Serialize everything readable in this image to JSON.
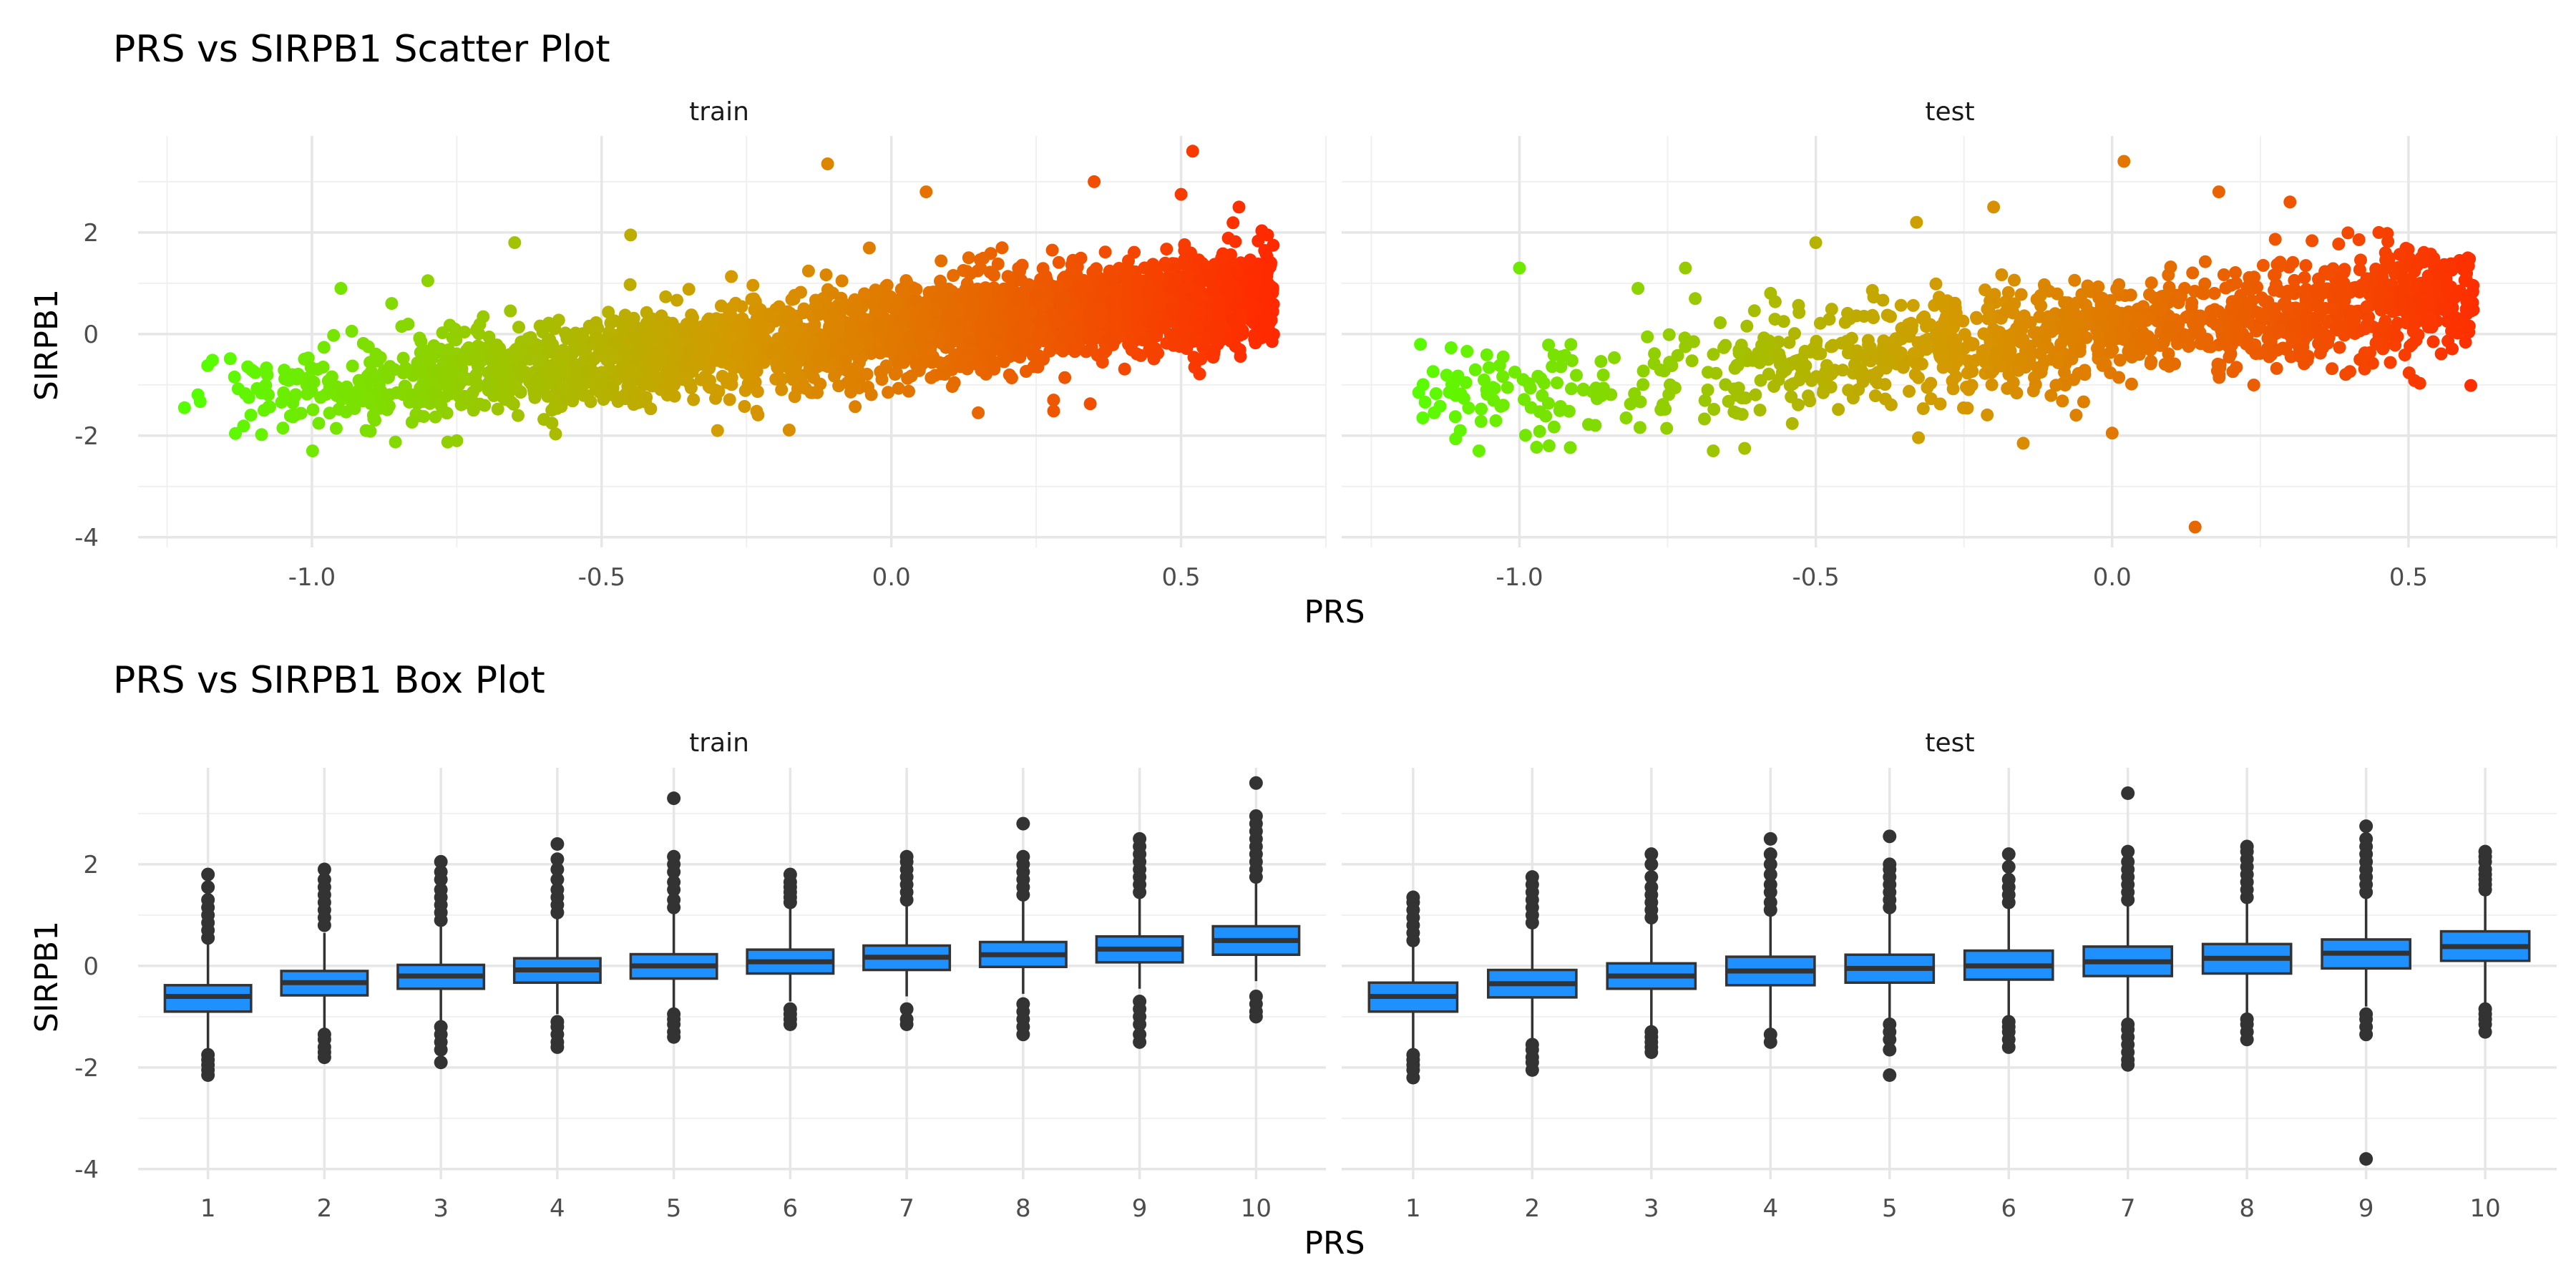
{
  "chart_data": [
    {
      "type": "scatter",
      "title": "PRS vs SIRPB1 Scatter Plot",
      "xlabel": "PRS",
      "ylabel": "SIRPB1",
      "facets": [
        "train",
        "test"
      ],
      "xlim": [
        -1.3,
        0.75
      ],
      "ylim": [
        -4.2,
        3.9
      ],
      "x_ticks": [
        -1.0,
        -0.5,
        0.0,
        0.5
      ],
      "x_tick_labels": [
        "-1.0",
        "-0.5",
        "0.0",
        "0.5"
      ],
      "y_ticks": [
        -4,
        -2,
        0,
        2
      ],
      "y_tick_labels": [
        "-4",
        "-2",
        "0",
        "2"
      ],
      "grid": true,
      "color_gradient": {
        "low": "#55ff00",
        "mid": "#d49a00",
        "high": "#ff2a00"
      },
      "trend": {
        "slope": 1.15,
        "intercept": 0.05
      },
      "series": [
        {
          "facet": "train",
          "x_range": [
            -1.22,
            0.66
          ],
          "point_count": 3000,
          "points": [
            [
              -1.22,
              -1.45
            ],
            [
              -1.18,
              -0.62
            ],
            [
              -1.05,
              -1.85
            ],
            [
              -0.95,
              0.9
            ],
            [
              -0.8,
              1.05
            ],
            [
              -0.75,
              -2.1
            ],
            [
              -0.65,
              1.8
            ],
            [
              -0.45,
              1.95
            ],
            [
              -0.3,
              -1.9
            ],
            [
              -0.11,
              3.35
            ],
            [
              0.06,
              2.8
            ],
            [
              0.15,
              -1.55
            ],
            [
              0.28,
              -1.3
            ],
            [
              0.35,
              3.0
            ],
            [
              0.5,
              2.75
            ],
            [
              0.52,
              3.6
            ],
            [
              0.6,
              2.5
            ],
            [
              0.65,
              1.0
            ],
            [
              0.62,
              0.6
            ],
            [
              0.57,
              1.5
            ]
          ]
        },
        {
          "facet": "test",
          "x_range": [
            -1.17,
            0.61
          ],
          "point_count": 1300,
          "points": [
            [
              -1.17,
              -1.15
            ],
            [
              -1.1,
              -1.9
            ],
            [
              -1.0,
              1.3
            ],
            [
              -0.95,
              -2.2
            ],
            [
              -0.8,
              0.9
            ],
            [
              -0.72,
              1.3
            ],
            [
              -0.62,
              -2.25
            ],
            [
              -0.5,
              1.8
            ],
            [
              -0.33,
              2.2
            ],
            [
              -0.2,
              2.5
            ],
            [
              -0.15,
              -2.15
            ],
            [
              0.0,
              -1.95
            ],
            [
              0.02,
              3.4
            ],
            [
              0.14,
              -3.8
            ],
            [
              0.18,
              2.8
            ],
            [
              0.3,
              2.6
            ],
            [
              0.45,
              2.0
            ],
            [
              0.55,
              1.2
            ],
            [
              0.6,
              1.5
            ],
            [
              0.58,
              0.8
            ]
          ]
        }
      ]
    },
    {
      "type": "box",
      "title": "PRS vs SIRPB1 Box Plot",
      "xlabel": "PRS",
      "ylabel": "SIRPB1",
      "facets": [
        "train",
        "test"
      ],
      "categories": [
        "1",
        "2",
        "3",
        "4",
        "5",
        "6",
        "7",
        "8",
        "9",
        "10"
      ],
      "ylim": [
        -4.2,
        3.9
      ],
      "y_ticks": [
        -4,
        -2,
        0,
        2
      ],
      "y_tick_labels": [
        "-4",
        "-2",
        "0",
        "2"
      ],
      "grid": true,
      "fill": "#1e90ff",
      "series": [
        {
          "facet": "train",
          "boxes": [
            {
              "whisker_low": -1.7,
              "q1": -0.9,
              "median": -0.6,
              "q3": -0.38,
              "whisker_high": 0.45,
              "outliers": [
                -1.75,
                -1.85,
                -1.95,
                -2.05,
                -2.15,
                0.55,
                0.7,
                0.85,
                1.0,
                1.15,
                1.3,
                1.55,
                1.8
              ]
            },
            {
              "whisker_low": -1.25,
              "q1": -0.58,
              "median": -0.33,
              "q3": -0.1,
              "whisker_high": 0.65,
              "outliers": [
                -1.35,
                -1.45,
                -1.6,
                -1.7,
                -1.8,
                0.8,
                0.95,
                1.1,
                1.25,
                1.4,
                1.55,
                1.7,
                1.9
              ]
            },
            {
              "whisker_low": -1.1,
              "q1": -0.45,
              "median": -0.2,
              "q3": 0.02,
              "whisker_high": 0.8,
              "outliers": [
                -1.2,
                -1.35,
                -1.5,
                -1.65,
                -1.9,
                0.9,
                1.05,
                1.2,
                1.35,
                1.5,
                1.7,
                1.85,
                2.05
              ]
            },
            {
              "whisker_low": -0.95,
              "q1": -0.33,
              "median": -0.08,
              "q3": 0.15,
              "whisker_high": 0.95,
              "outliers": [
                -1.1,
                -1.2,
                -1.35,
                -1.5,
                -1.6,
                1.05,
                1.2,
                1.35,
                1.5,
                1.7,
                1.9,
                2.1,
                2.4
              ]
            },
            {
              "whisker_low": -0.85,
              "q1": -0.25,
              "median": 0.0,
              "q3": 0.23,
              "whisker_high": 1.05,
              "outliers": [
                -0.95,
                -1.05,
                -1.15,
                -1.3,
                -1.4,
                1.15,
                1.3,
                1.5,
                1.65,
                1.85,
                2.0,
                2.15,
                3.3
              ]
            },
            {
              "whisker_low": -0.7,
              "q1": -0.15,
              "median": 0.08,
              "q3": 0.32,
              "whisker_high": 1.15,
              "outliers": [
                -0.85,
                -0.95,
                -1.05,
                -1.15,
                1.25,
                1.35,
                1.45,
                1.55,
                1.65,
                1.8
              ]
            },
            {
              "whisker_low": -0.6,
              "q1": -0.08,
              "median": 0.17,
              "q3": 0.4,
              "whisker_high": 1.2,
              "outliers": [
                -0.85,
                -1.05,
                -1.15,
                1.3,
                1.45,
                1.6,
                1.75,
                1.9,
                2.05,
                2.15
              ]
            },
            {
              "whisker_low": -0.55,
              "q1": -0.02,
              "median": 0.22,
              "q3": 0.47,
              "whisker_high": 1.3,
              "outliers": [
                -0.75,
                -0.9,
                -1.05,
                -1.2,
                -1.35,
                1.4,
                1.55,
                1.7,
                1.85,
                2.0,
                2.15,
                2.8
              ]
            },
            {
              "whisker_low": -0.45,
              "q1": 0.07,
              "median": 0.33,
              "q3": 0.58,
              "whisker_high": 1.35,
              "outliers": [
                -0.7,
                -0.85,
                -1.0,
                -1.15,
                -1.35,
                -1.5,
                1.45,
                1.6,
                1.75,
                1.9,
                2.05,
                2.2,
                2.35,
                2.5
              ]
            },
            {
              "whisker_low": -0.3,
              "q1": 0.22,
              "median": 0.5,
              "q3": 0.78,
              "whisker_high": 1.65,
              "outliers": [
                -0.6,
                -0.75,
                -0.9,
                -1.0,
                1.75,
                1.9,
                2.05,
                2.2,
                2.35,
                2.5,
                2.65,
                2.8,
                2.95,
                3.6
              ]
            }
          ]
        },
        {
          "facet": "test",
          "boxes": [
            {
              "whisker_low": -1.7,
              "q1": -0.9,
              "median": -0.6,
              "q3": -0.33,
              "whisker_high": 0.4,
              "outliers": [
                -1.75,
                -1.85,
                -1.95,
                -2.05,
                -2.2,
                0.5,
                0.65,
                0.8,
                0.95,
                1.1,
                1.25,
                1.35
              ]
            },
            {
              "whisker_low": -1.45,
              "q1": -0.62,
              "median": -0.35,
              "q3": -0.08,
              "whisker_high": 0.75,
              "outliers": [
                -1.55,
                -1.65,
                -1.8,
                -1.9,
                -2.05,
                0.85,
                1.0,
                1.15,
                1.3,
                1.45,
                1.6,
                1.75
              ]
            },
            {
              "whisker_low": -1.2,
              "q1": -0.45,
              "median": -0.2,
              "q3": 0.05,
              "whisker_high": 0.85,
              "outliers": [
                -1.3,
                -1.4,
                -1.5,
                -1.6,
                -1.7,
                0.95,
                1.1,
                1.25,
                1.4,
                1.55,
                1.75,
                2.0,
                2.2
              ]
            },
            {
              "whisker_low": -1.25,
              "q1": -0.38,
              "median": -0.1,
              "q3": 0.18,
              "whisker_high": 1.0,
              "outliers": [
                -1.35,
                -1.5,
                1.1,
                1.25,
                1.45,
                1.6,
                1.8,
                2.0,
                2.2,
                2.5
              ]
            },
            {
              "whisker_low": -1.05,
              "q1": -0.33,
              "median": -0.05,
              "q3": 0.22,
              "whisker_high": 1.05,
              "outliers": [
                -1.15,
                -1.3,
                -1.45,
                -1.65,
                -2.15,
                1.15,
                1.3,
                1.45,
                1.6,
                1.75,
                1.9,
                2.0,
                2.55
              ]
            },
            {
              "whisker_low": -1.0,
              "q1": -0.27,
              "median": 0.0,
              "q3": 0.3,
              "whisker_high": 1.15,
              "outliers": [
                -1.1,
                -1.2,
                -1.3,
                -1.45,
                -1.6,
                1.25,
                1.4,
                1.55,
                1.7,
                1.95,
                2.2
              ]
            },
            {
              "whisker_low": -1.05,
              "q1": -0.2,
              "median": 0.08,
              "q3": 0.38,
              "whisker_high": 1.2,
              "outliers": [
                -1.15,
                -1.25,
                -1.4,
                -1.55,
                -1.7,
                -1.85,
                -1.95,
                1.3,
                1.45,
                1.6,
                1.75,
                1.9,
                2.05,
                2.25,
                3.4
              ]
            },
            {
              "whisker_low": -0.95,
              "q1": -0.15,
              "median": 0.15,
              "q3": 0.43,
              "whisker_high": 1.25,
              "outliers": [
                -1.05,
                -1.15,
                -1.3,
                -1.45,
                1.35,
                1.5,
                1.65,
                1.8,
                1.95,
                2.1,
                2.25,
                2.35
              ]
            },
            {
              "whisker_low": -0.8,
              "q1": -0.05,
              "median": 0.25,
              "q3": 0.52,
              "whisker_high": 1.35,
              "outliers": [
                -0.95,
                -1.05,
                -1.2,
                -1.35,
                -3.8,
                1.45,
                1.6,
                1.75,
                1.9,
                2.05,
                2.2,
                2.35,
                2.5,
                2.75
              ]
            },
            {
              "whisker_low": -0.75,
              "q1": 0.1,
              "median": 0.38,
              "q3": 0.68,
              "whisker_high": 1.4,
              "outliers": [
                -0.85,
                -0.95,
                -1.05,
                -1.15,
                -1.3,
                1.5,
                1.6,
                1.7,
                1.8,
                1.9,
                2.05,
                2.15,
                2.25
              ]
            }
          ]
        }
      ]
    }
  ]
}
